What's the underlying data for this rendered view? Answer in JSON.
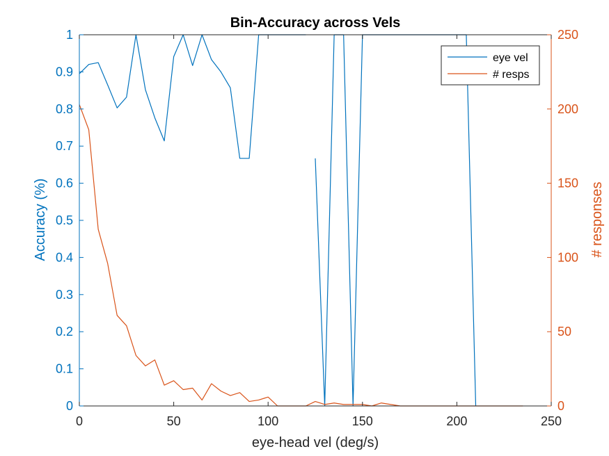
{
  "chart_data": {
    "type": "line",
    "title": "Bin-Accuracy across Vels",
    "xlabel": "eye-head vel (deg/s)",
    "ylabel_left": "Accuracy (%)",
    "ylabel_right": "# responses",
    "xlim": [
      0,
      250
    ],
    "ylim_left": [
      0,
      1
    ],
    "ylim_right": [
      0,
      250
    ],
    "x_ticks": [
      "0",
      "50",
      "100",
      "150",
      "200",
      "250"
    ],
    "y_left_ticks": [
      "0",
      "0.1",
      "0.2",
      "0.3",
      "0.4",
      "0.5",
      "0.6",
      "0.7",
      "0.8",
      "0.9",
      "1"
    ],
    "y_right_ticks": [
      "0",
      "50",
      "100",
      "150",
      "200",
      "250"
    ],
    "legend_position": "top-right",
    "grid": false,
    "series": [
      {
        "name": "eye vel",
        "axis": "left",
        "color": "#0072BD",
        "segments": [
          [
            [
              0,
              0.895
            ],
            [
              5,
              0.92
            ],
            [
              10,
              0.925
            ],
            [
              15,
              0.865
            ],
            [
              20,
              0.803
            ],
            [
              25,
              0.832
            ],
            [
              30,
              1.0
            ],
            [
              35,
              0.852
            ],
            [
              40,
              0.776
            ],
            [
              45,
              0.714
            ],
            [
              50,
              0.941
            ],
            [
              55,
              1.0
            ],
            [
              60,
              0.917
            ],
            [
              65,
              1.0
            ],
            [
              70,
              0.933
            ],
            [
              75,
              0.9
            ],
            [
              80,
              0.857
            ],
            [
              85,
              0.667
            ],
            [
              90,
              0.667
            ],
            [
              95,
              1.0
            ],
            [
              100,
              1.0
            ],
            [
              105,
              1.0
            ],
            [
              110,
              1.0
            ],
            [
              115,
              1.0
            ],
            [
              120,
              1.0
            ]
          ],
          [
            [
              125,
              0.667
            ],
            [
              130,
              0
            ],
            [
              135,
              1.0
            ],
            [
              140,
              1.0
            ],
            [
              145,
              0
            ],
            [
              150,
              1.0
            ],
            [
              155,
              1.0
            ],
            [
              160,
              1.0
            ],
            [
              165,
              1.0
            ],
            [
              170,
              1.0
            ],
            [
              175,
              1.0
            ],
            [
              180,
              1.0
            ],
            [
              185,
              1.0
            ],
            [
              190,
              1.0
            ],
            [
              195,
              1.0
            ],
            [
              200,
              1.0
            ],
            [
              205,
              1.0
            ],
            [
              210,
              0
            ]
          ]
        ]
      },
      {
        "name": "# resps",
        "axis": "right",
        "color": "#D95319",
        "segments": [
          [
            [
              0,
              203
            ],
            [
              5,
              186
            ],
            [
              10,
              119
            ],
            [
              15,
              96
            ],
            [
              20,
              61
            ],
            [
              25,
              54
            ],
            [
              30,
              34
            ],
            [
              35,
              27
            ],
            [
              40,
              31
            ],
            [
              45,
              14
            ],
            [
              50,
              17
            ],
            [
              55,
              11
            ],
            [
              60,
              12
            ],
            [
              65,
              4
            ],
            [
              70,
              15
            ],
            [
              75,
              10
            ],
            [
              80,
              7
            ],
            [
              85,
              9
            ],
            [
              90,
              3
            ],
            [
              95,
              4
            ],
            [
              100,
              6
            ],
            [
              105,
              0
            ],
            [
              110,
              0
            ],
            [
              115,
              0
            ],
            [
              120,
              0
            ],
            [
              125,
              3
            ],
            [
              130,
              1
            ],
            [
              135,
              2
            ],
            [
              140,
              1
            ],
            [
              145,
              1
            ],
            [
              150,
              1
            ],
            [
              155,
              0
            ],
            [
              160,
              2
            ],
            [
              165,
              1
            ],
            [
              170,
              0
            ],
            [
              175,
              0
            ],
            [
              180,
              0
            ],
            [
              185,
              0
            ],
            [
              190,
              0
            ],
            [
              195,
              0
            ],
            [
              200,
              0
            ],
            [
              205,
              0
            ],
            [
              210,
              0
            ],
            [
              215,
              0
            ],
            [
              220,
              0
            ],
            [
              225,
              0
            ],
            [
              230,
              0
            ],
            [
              235,
              0
            ]
          ]
        ]
      }
    ]
  }
}
